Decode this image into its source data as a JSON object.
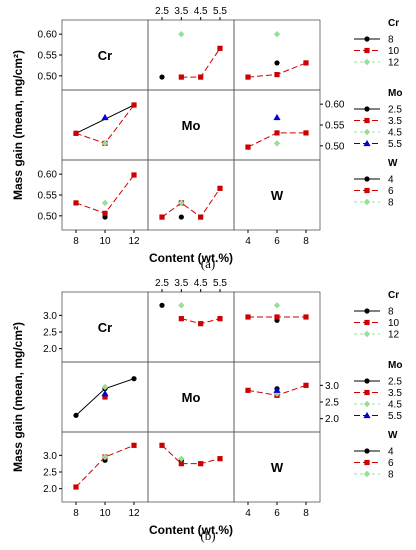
{
  "chart_data": [
    {
      "type": "line",
      "panel_label": "(a)",
      "ylabel": "Mass gain (mean, mg/cm²)",
      "xlabel": "Content (wt.%)",
      "factors": [
        "Cr",
        "Mo",
        "W"
      ],
      "levels": {
        "Cr": [
          "8",
          "10",
          "12"
        ],
        "Mo": [
          "2.5",
          "3.5",
          "4.5",
          "5.5"
        ],
        "W": [
          "4",
          "6",
          "8"
        ]
      },
      "factor_ticks": {
        "Cr": [
          "8",
          "10",
          "12"
        ],
        "Mo": [
          "2.5",
          "3.5",
          "4.5",
          "5.5"
        ],
        "W": [
          "4",
          "6",
          "8"
        ]
      },
      "y_ticks": [
        "0.50",
        "0.55",
        "0.60"
      ],
      "ylim": [
        0.49,
        0.61
      ],
      "cells": {
        "Cr_Mo": {
          "8": [
            0.497,
            null,
            null,
            null
          ],
          "10": [
            null,
            0.497,
            0.497,
            0.566
          ],
          "12": [
            null,
            0.6,
            null,
            null
          ]
        },
        "Cr_W": {
          "8": [
            null,
            0.531,
            null
          ],
          "10": [
            0.497,
            0.503,
            0.531
          ],
          "12": [
            null,
            0.6,
            null
          ]
        },
        "Mo_Cr": {
          "2.5": [
            0.53,
            null,
            0.598
          ],
          "3.5": [
            0.53,
            0.506,
            0.598
          ],
          "4.5": [
            null,
            0.506,
            null
          ],
          "5.5": [
            null,
            0.568,
            null
          ]
        },
        "Mo_W": {
          "2.5": [
            0.497,
            null,
            null
          ],
          "3.5": [
            0.497,
            0.531,
            0.531
          ],
          "4.5": [
            null,
            0.506,
            null
          ],
          "5.5": [
            null,
            0.568,
            null
          ]
        },
        "W_Cr": {
          "4": [
            null,
            0.497,
            null
          ],
          "6": [
            0.531,
            0.506,
            0.598
          ],
          "8": [
            null,
            0.531,
            null
          ]
        },
        "W_Mo": {
          "4": [
            null,
            0.497,
            null,
            null
          ],
          "6": [
            0.497,
            0.531,
            0.497,
            0.566
          ],
          "8": [
            null,
            0.531,
            null,
            null
          ]
        }
      }
    },
    {
      "type": "line",
      "panel_label": "(b)",
      "ylabel": "Mass gain (mean, mg/cm²)",
      "xlabel": "Content (wt.%)",
      "factors": [
        "Cr",
        "Mo",
        "W"
      ],
      "levels": {
        "Cr": [
          "8",
          "10",
          "12"
        ],
        "Mo": [
          "2.5",
          "3.5",
          "4.5",
          "5.5"
        ],
        "W": [
          "4",
          "6",
          "8"
        ]
      },
      "factor_ticks": {
        "Cr": [
          "8",
          "10",
          "12"
        ],
        "Mo": [
          "2.5",
          "3.5",
          "4.5",
          "5.5"
        ],
        "W": [
          "4",
          "6",
          "8"
        ]
      },
      "y_ticks": [
        "2.0",
        "2.5",
        "3.0"
      ],
      "ylim": [
        1.9,
        3.4
      ],
      "cells": {
        "Cr_Mo": {
          "8": [
            3.3,
            null,
            null,
            null
          ],
          "10": [
            null,
            2.9,
            2.75,
            2.9
          ],
          "12": [
            null,
            3.3,
            null,
            null
          ]
        },
        "Cr_W": {
          "8": [
            null,
            2.85,
            null
          ],
          "10": [
            2.95,
            2.95,
            2.95
          ],
          "12": [
            null,
            3.3,
            null
          ]
        },
        "Mo_Cr": {
          "2.5": [
            2.1,
            2.9,
            3.2
          ],
          "3.5": [
            null,
            2.65,
            null
          ],
          "4.5": [
            null,
            2.95,
            null
          ],
          "5.5": [
            null,
            2.75,
            null
          ]
        },
        "Mo_W": {
          "2.5": [
            null,
            2.9,
            null
          ],
          "3.5": [
            2.85,
            2.7,
            3.0
          ],
          "4.5": [
            null,
            2.75,
            null
          ],
          "5.5": [
            null,
            2.85,
            null
          ]
        },
        "W_Cr": {
          "4": [
            null,
            2.85,
            null
          ],
          "6": [
            2.05,
            2.95,
            3.3
          ],
          "8": [
            null,
            2.95,
            null
          ]
        },
        "W_Mo": {
          "4": [
            null,
            2.85,
            null,
            null
          ],
          "6": [
            3.3,
            2.75,
            2.75,
            2.9
          ],
          "8": [
            null,
            2.9,
            null,
            null
          ]
        }
      }
    }
  ],
  "colors": {
    "level1": "#000000",
    "level2": "#cc0000",
    "level3": "#99dd99",
    "level4": "#0000dd",
    "panel_border": "#555555",
    "grid": "#bbbbbb"
  }
}
